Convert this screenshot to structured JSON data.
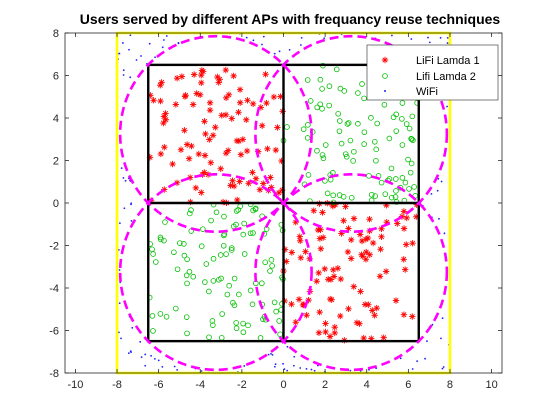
{
  "chart_data": {
    "type": "scatter",
    "title": "Users served by different APs with frequancy reuse techniques",
    "xlabel": "",
    "ylabel": "",
    "xlim": [
      -10.5,
      10.5
    ],
    "ylim": [
      -8,
      8
    ],
    "xticks": [
      -10,
      -8,
      -6,
      -4,
      -2,
      0,
      2,
      4,
      6,
      8,
      10
    ],
    "yticks": [
      -8,
      -6,
      -4,
      -2,
      0,
      2,
      4,
      6,
      8
    ],
    "grid": false,
    "legend": {
      "placement": "top-right"
    },
    "colors": {
      "lifi1": "#ff0000",
      "lifi2": "#00c000",
      "wifi": "#2020ff",
      "circles": "#ff00ff",
      "outer_square": "#ffff00",
      "inner_squares": "#000000"
    },
    "series": [
      {
        "name": "LiFi Lamda 1",
        "marker": "asterisk",
        "region": "top-left and bottom-right quadrants"
      },
      {
        "name": "Lifi Lamda 2",
        "marker": "circle",
        "region": "top-right and bottom-left quadrants"
      },
      {
        "name": "WiFi",
        "marker": "dot",
        "region": "outside the LiFi circles"
      }
    ],
    "lifi_cells": [
      {
        "center": [
          -3.25,
          3.25
        ],
        "radius": 4.6
      },
      {
        "center": [
          3.25,
          3.25
        ],
        "radius": 4.6
      },
      {
        "center": [
          -3.25,
          -3.25
        ],
        "radius": 4.6
      },
      {
        "center": [
          3.25,
          -3.25
        ],
        "radius": 4.6
      }
    ],
    "room_square": {
      "x": [
        -8,
        8
      ],
      "y": [
        -8,
        8
      ]
    },
    "cell_grid": {
      "x": [
        -6.5,
        6.5
      ],
      "y": [
        -6.5,
        6.5
      ],
      "divider": 0
    }
  }
}
